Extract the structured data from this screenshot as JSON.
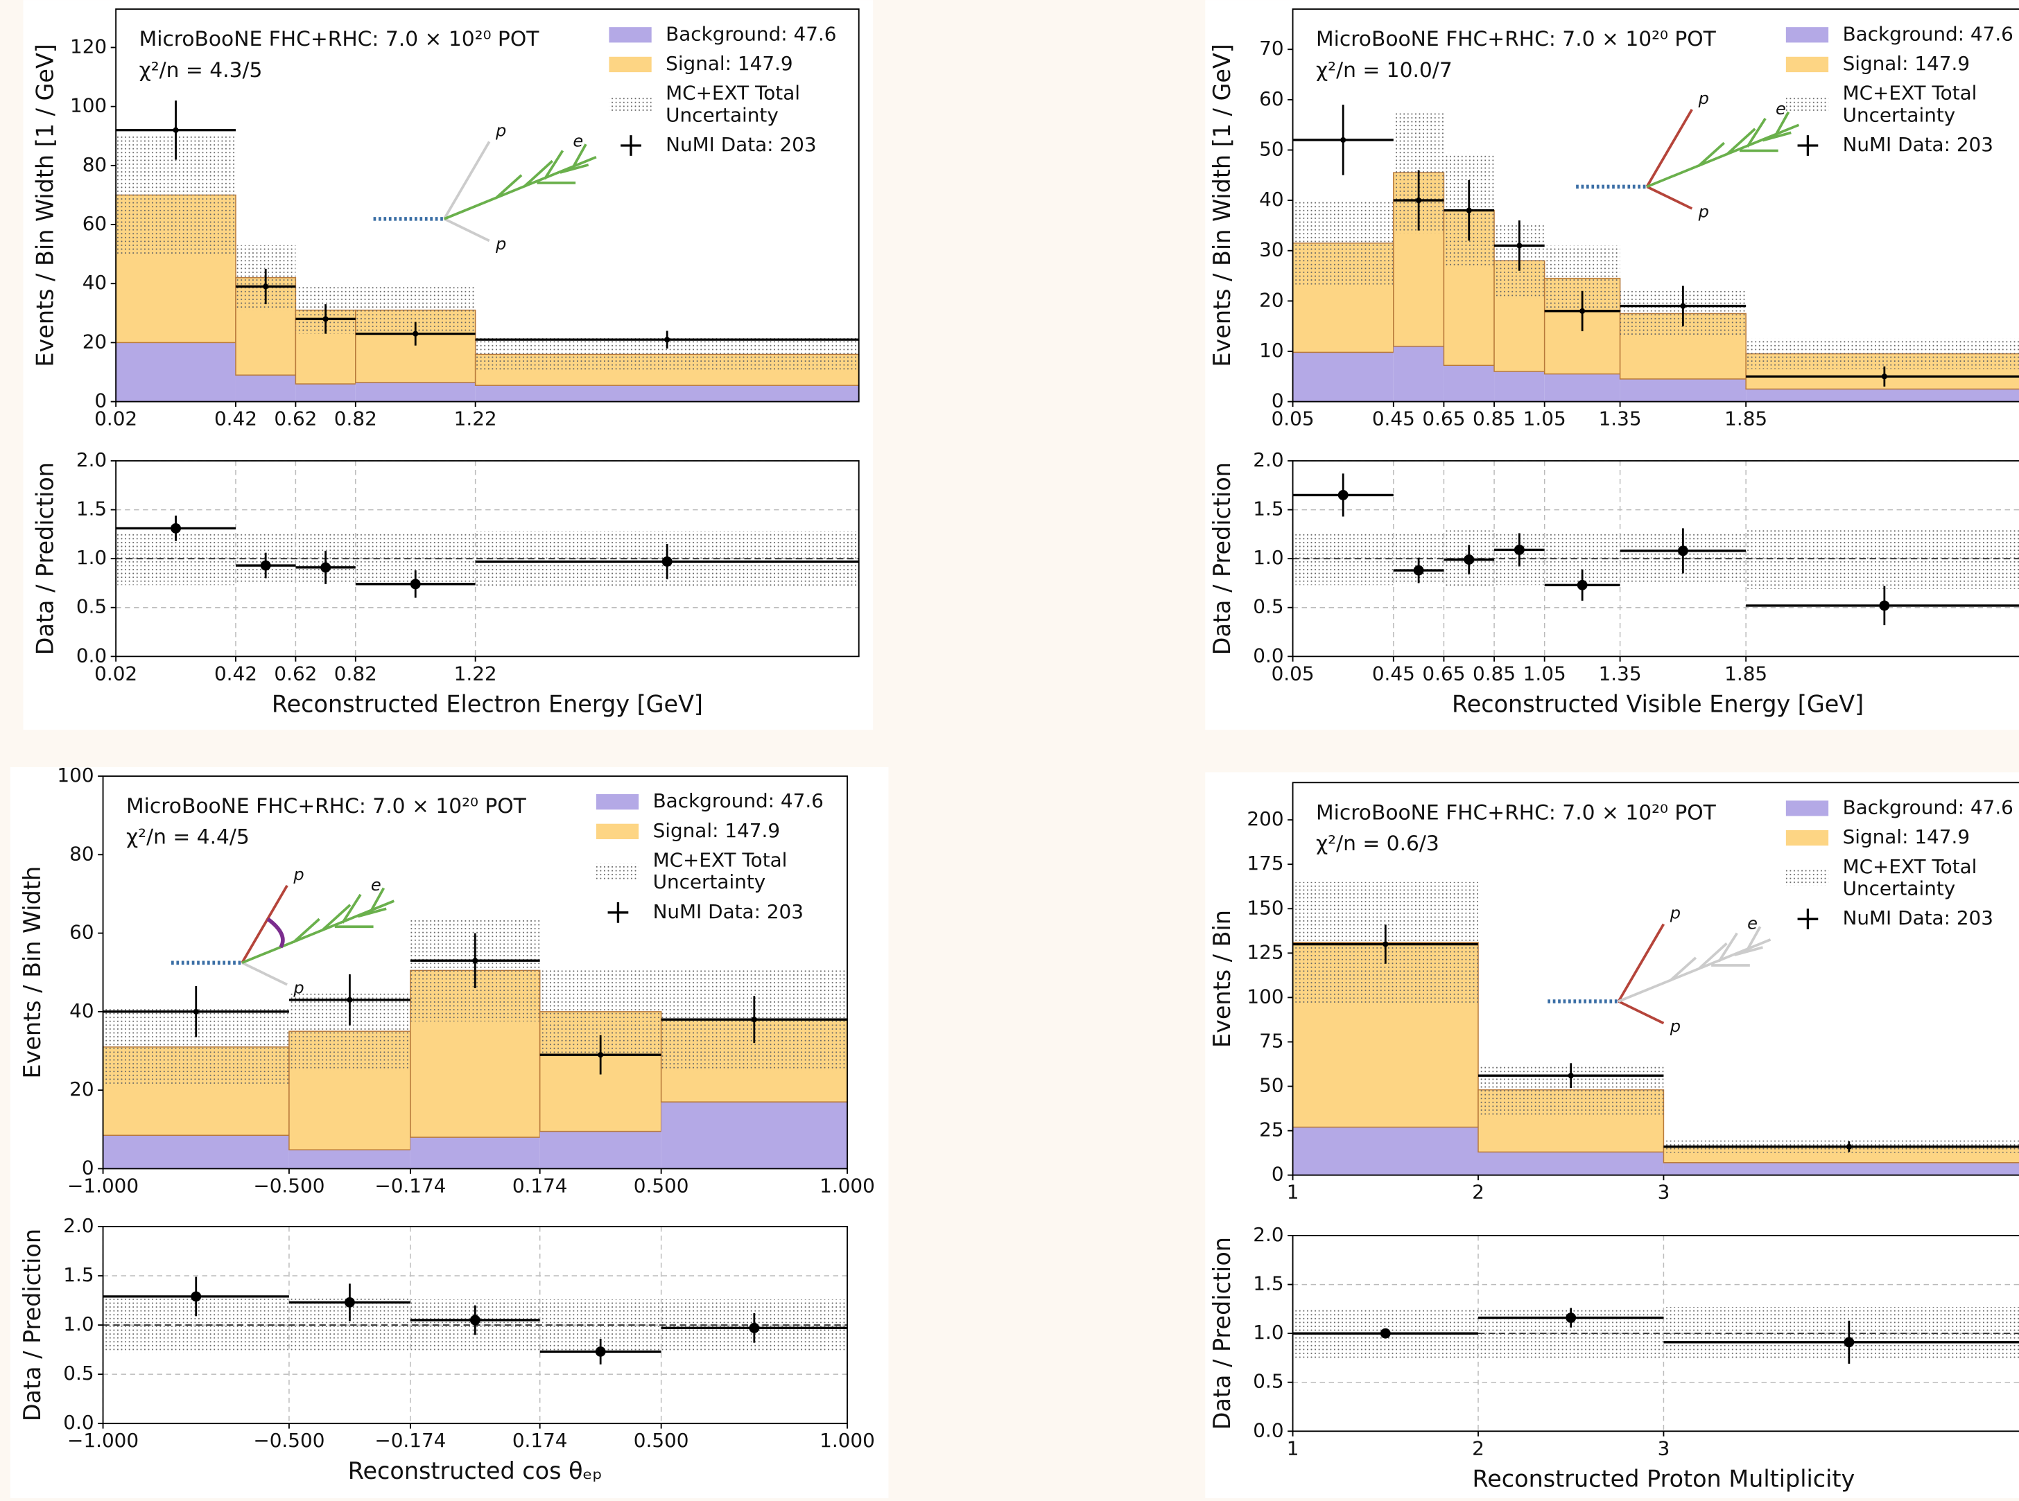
{
  "chart_data": [
    {
      "type": "stacked_histogram",
      "annotation": "MicroBooNE FHC+RHC: 7.0 × 10²⁰ POT",
      "chi2": "χ²/n = 4.3/5",
      "xlabel": "Reconstructed Electron Energy [GeV]",
      "ylabel": "Events / Bin Width [1 / GeV]",
      "bins": [
        0.02,
        0.42,
        0.62,
        0.82,
        1.22,
        2.5
      ],
      "xlim": [
        0.02,
        2.5
      ],
      "xticks": [
        0.02,
        0.42,
        0.62,
        0.82,
        1.22
      ],
      "ylim": [
        0,
        133
      ],
      "yticks": [
        0,
        20,
        40,
        60,
        80,
        100,
        120
      ],
      "series": [
        {
          "name": "Background: 47.6",
          "color": "#b4a9e6",
          "values": [
            20,
            9,
            6,
            6.5,
            5.5
          ]
        },
        {
          "name": "Signal: 147.9",
          "color": "#fdd584",
          "values": [
            50,
            33,
            25,
            24.5,
            10.5
          ]
        }
      ],
      "uncertainty": {
        "name": [
          "MC+EXT Total",
          "Uncertainty"
        ],
        "values": [
          20,
          11,
          8,
          8,
          5.5
        ]
      },
      "data": {
        "name": "NuMI Data: 203",
        "values": [
          92,
          39,
          28,
          23,
          21
        ],
        "errors": [
          10,
          6,
          5,
          4,
          3
        ]
      },
      "inset_labels": [
        "p",
        "e",
        "p"
      ],
      "ratio": {
        "ylabel": "Data / Prediction",
        "ylim": [
          0,
          2
        ],
        "yticks": [
          {
            "value": 0,
            "label": "0.0"
          },
          0.5,
          {
            "value": 1,
            "label": "1.0"
          },
          1.5,
          {
            "value": 2,
            "label": "2.0"
          }
        ],
        "grid": true,
        "reference": 1,
        "values": [
          1.31,
          0.93,
          0.91,
          0.74,
          0.97
        ],
        "errors": [
          0.13,
          0.13,
          0.17,
          0.14,
          0.18
        ],
        "uncertainty": [
          0.27,
          0.26,
          0.26,
          0.26,
          0.28
        ]
      }
    },
    {
      "type": "stacked_histogram",
      "annotation": "MicroBooNE FHC+RHC: 7.0 × 10²⁰ POT",
      "chi2": "χ²/n = 10.0/7",
      "xlabel": "Reconstructed Visible Energy [GeV]",
      "ylabel": "Events / Bin Width [1 / GeV]",
      "bins": [
        0.05,
        0.45,
        0.65,
        0.85,
        1.05,
        1.35,
        1.85,
        2.95
      ],
      "xlim": [
        0.05,
        2.95
      ],
      "xticks": [
        0.05,
        0.45,
        0.65,
        0.85,
        1.05,
        1.35,
        1.85
      ],
      "ylim": [
        0,
        78
      ],
      "yticks": [
        0,
        10,
        20,
        30,
        40,
        50,
        60,
        70
      ],
      "series": [
        {
          "name": "Background: 47.6",
          "color": "#b4a9e6",
          "values": [
            9.8,
            11,
            7.2,
            6,
            5.5,
            4.5,
            2.5
          ]
        },
        {
          "name": "Signal: 147.9",
          "color": "#fdd584",
          "values": [
            21.7,
            34.5,
            30.8,
            22,
            19,
            13,
            7
          ]
        }
      ],
      "uncertainty": {
        "name": [
          "MC+EXT Total",
          "Uncertainty"
        ],
        "values": [
          8.5,
          12,
          11,
          7.5,
          6.5,
          4.5,
          3
        ]
      },
      "data": {
        "name": "NuMI Data: 203",
        "values": [
          52,
          40,
          38,
          31,
          18,
          19,
          5
        ],
        "errors": [
          7,
          6,
          6,
          5,
          4,
          4,
          2
        ]
      },
      "inset_labels": [
        "p",
        "e",
        "p"
      ],
      "ratio": {
        "ylabel": "Data / Prediction",
        "ylim": [
          0,
          2
        ],
        "yticks": [
          {
            "value": 0,
            "label": "0.0"
          },
          0.5,
          {
            "value": 1,
            "label": "1.0"
          },
          1.5,
          {
            "value": 2,
            "label": "2.0"
          }
        ],
        "grid": true,
        "reference": 1,
        "values": [
          1.65,
          0.88,
          0.99,
          1.09,
          0.73,
          1.08,
          0.52
        ],
        "errors": [
          0.22,
          0.13,
          0.15,
          0.17,
          0.16,
          0.23,
          0.2
        ],
        "uncertainty": [
          0.27,
          0.26,
          0.29,
          0.27,
          0.27,
          0.26,
          0.31
        ]
      }
    },
    {
      "type": "stacked_histogram",
      "annotation": "MicroBooNE FHC+RHC: 7.0 × 10²⁰ POT",
      "chi2": "χ²/n = 4.4/5",
      "xlabel": "Reconstructed cos θₑₚ",
      "ylabel": "Events / Bin Width",
      "bins": [
        -1,
        -0.5,
        -0.174,
        0.174,
        0.5,
        1
      ],
      "xlim": [
        -1,
        1
      ],
      "xticks": [
        {
          "value": -1,
          "label": "−1.000"
        },
        {
          "value": -0.5,
          "label": "−0.500"
        },
        {
          "value": -0.174,
          "label": "−0.174"
        },
        {
          "value": 0.174,
          "label": "0.174"
        },
        {
          "value": 0.5,
          "label": "0.500"
        },
        {
          "value": 1,
          "label": "1.000"
        }
      ],
      "ylim": [
        0,
        100
      ],
      "yticks": [
        0,
        20,
        40,
        60,
        80,
        100
      ],
      "series": [
        {
          "name": "Background: 47.6",
          "color": "#b4a9e6",
          "values": [
            8.5,
            4.8,
            8,
            9.5,
            17
          ]
        },
        {
          "name": "Signal: 147.9",
          "color": "#fdd584",
          "values": [
            22.5,
            30.2,
            42.5,
            30.5,
            21
          ]
        }
      ],
      "uncertainty": {
        "name": [
          "MC+EXT Total",
          "Uncertainty"
        ],
        "values": [
          10,
          10,
          13,
          11,
          13
        ]
      },
      "data": {
        "name": "NuMI Data: 203",
        "values": [
          40,
          43,
          53,
          29,
          38
        ],
        "errors": [
          6.5,
          6.5,
          7,
          5,
          6
        ]
      },
      "inset_labels": [
        "p",
        "e",
        "p"
      ],
      "ratio": {
        "ylabel": "Data / Prediction",
        "ylim": [
          0,
          2
        ],
        "yticks": [
          {
            "value": 0,
            "label": "0.0"
          },
          0.5,
          {
            "value": 1,
            "label": "1.0"
          },
          1.5,
          {
            "value": 2,
            "label": "2.0"
          }
        ],
        "grid": true,
        "reference": 1,
        "values": [
          1.29,
          1.23,
          1.05,
          0.73,
          0.97
        ],
        "errors": [
          0.2,
          0.19,
          0.15,
          0.13,
          0.15
        ],
        "uncertainty": [
          0.28,
          0.27,
          0.26,
          0.26,
          0.26
        ]
      }
    },
    {
      "type": "stacked_histogram",
      "annotation": "MicroBooNE FHC+RHC: 7.0 × 10²⁰ POT",
      "chi2": "χ²/n = 0.6/3",
      "xlabel": "Reconstructed Proton Multiplicity",
      "ylabel": "Events / Bin",
      "bins": [
        1,
        2,
        3,
        5
      ],
      "xlim": [
        1,
        5
      ],
      "xticks": [
        1,
        2,
        3
      ],
      "ylim": [
        0,
        221
      ],
      "yticks": [
        0,
        25,
        50,
        75,
        100,
        125,
        150,
        175,
        200
      ],
      "series": [
        {
          "name": "Background: 47.6",
          "color": "#b4a9e6",
          "values": [
            27,
            13,
            7
          ]
        },
        {
          "name": "Signal: 147.9",
          "color": "#fdd584",
          "values": [
            104,
            35,
            9
          ]
        }
      ],
      "uncertainty": {
        "name": [
          "MC+EXT Total",
          "Uncertainty"
        ],
        "values": [
          34,
          14,
          3.5
        ]
      },
      "data": {
        "name": "NuMI Data: 203",
        "values": [
          130,
          56,
          16
        ],
        "errors": [
          11,
          7,
          3
        ]
      },
      "inset_labels": [
        "p",
        "e",
        "p"
      ],
      "ratio": {
        "ylabel": "Data / Prediction",
        "ylim": [
          0,
          2
        ],
        "yticks": [
          {
            "value": 0,
            "label": "0.0"
          },
          0.5,
          {
            "value": 1,
            "label": "1.0"
          },
          1.5,
          {
            "value": 2,
            "label": "2.0"
          }
        ],
        "grid": true,
        "reference": 1,
        "values": [
          1.0,
          1.16,
          0.91
        ],
        "errors": [
          0.05,
          0.1,
          0.22
        ],
        "uncertainty": [
          0.25,
          0.25,
          0.27
        ]
      }
    }
  ]
}
